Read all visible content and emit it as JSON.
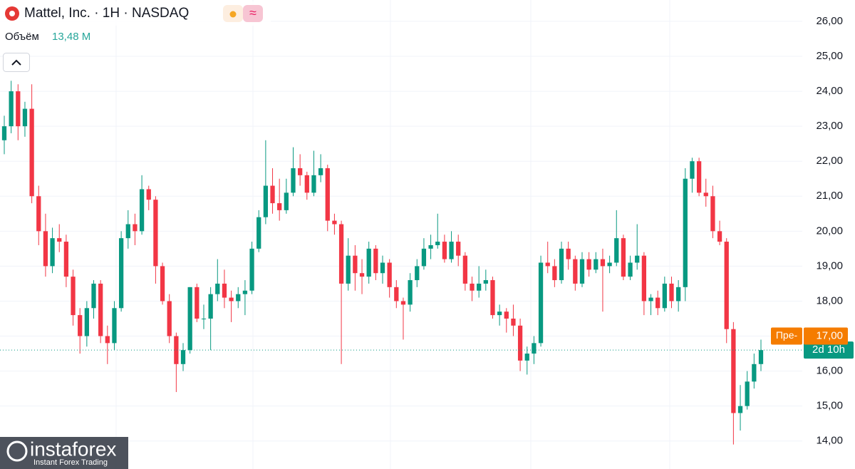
{
  "header": {
    "title": "Mattel, Inc. · 1H · NASDAQ",
    "volume_label": "Объём",
    "volume_value": "13,48 M"
  },
  "chart_data": {
    "type": "candlestick",
    "up_color": "#089981",
    "down_color": "#f23645",
    "ylim": [
      13.2,
      26.61
    ],
    "yticks": [
      {
        "value": 14,
        "label": "14,00"
      },
      {
        "value": 15,
        "label": "15,00"
      },
      {
        "value": 16,
        "label": "16,00"
      },
      {
        "value": 17,
        "label": "17,00"
      },
      {
        "value": 18,
        "label": "18,00"
      },
      {
        "value": 19,
        "label": "19,00"
      },
      {
        "value": 20,
        "label": "20,00"
      },
      {
        "value": 21,
        "label": "21,00"
      },
      {
        "value": 22,
        "label": "22,00"
      },
      {
        "value": 23,
        "label": "23,00"
      },
      {
        "value": 24,
        "label": "24,00"
      },
      {
        "value": 25,
        "label": "25,00"
      },
      {
        "value": 26,
        "label": "26,00"
      }
    ],
    "grid": true,
    "ohlc": [
      [
        22.6,
        23.3,
        22.2,
        23.0
      ],
      [
        23.0,
        24.3,
        22.8,
        24.0
      ],
      [
        24.0,
        24.2,
        22.6,
        23.0
      ],
      [
        23.0,
        23.7,
        22.7,
        23.5
      ],
      [
        23.5,
        24.2,
        20.8,
        21.0
      ],
      [
        21.0,
        21.3,
        19.6,
        20.0
      ],
      [
        20.0,
        20.5,
        18.7,
        19.0
      ],
      [
        19.0,
        20.1,
        18.8,
        19.8
      ],
      [
        19.8,
        20.2,
        19.4,
        19.7
      ],
      [
        19.7,
        19.9,
        18.4,
        18.7
      ],
      [
        18.7,
        18.9,
        17.3,
        17.6
      ],
      [
        17.6,
        17.8,
        16.5,
        17.0
      ],
      [
        17.0,
        18.0,
        16.7,
        17.8
      ],
      [
        17.8,
        18.6,
        17.5,
        18.5
      ],
      [
        18.5,
        18.6,
        16.8,
        17.0
      ],
      [
        17.0,
        17.3,
        16.2,
        16.8
      ],
      [
        16.8,
        18.0,
        16.6,
        17.8
      ],
      [
        17.8,
        20.0,
        17.7,
        19.8
      ],
      [
        19.8,
        20.6,
        19.5,
        20.2
      ],
      [
        20.2,
        20.5,
        19.6,
        20.0
      ],
      [
        20.0,
        21.6,
        19.9,
        21.2
      ],
      [
        21.2,
        21.3,
        20.6,
        20.9
      ],
      [
        20.9,
        21.0,
        18.5,
        19.0
      ],
      [
        19.0,
        19.1,
        17.9,
        18.0
      ],
      [
        18.0,
        18.2,
        16.8,
        17.0
      ],
      [
        17.0,
        17.1,
        15.4,
        16.2
      ],
      [
        16.2,
        16.8,
        16.0,
        16.6
      ],
      [
        16.6,
        18.4,
        16.5,
        18.4
      ],
      [
        18.4,
        18.5,
        17.4,
        17.5
      ],
      [
        17.5,
        17.9,
        17.2,
        17.5
      ],
      [
        17.5,
        18.4,
        16.6,
        18.2
      ],
      [
        18.2,
        19.2,
        18.0,
        18.5
      ],
      [
        18.5,
        18.9,
        17.8,
        18.1
      ],
      [
        18.1,
        18.3,
        17.4,
        18.0
      ],
      [
        18.0,
        18.4,
        17.8,
        18.2
      ],
      [
        18.2,
        18.6,
        17.6,
        18.3
      ],
      [
        18.3,
        19.7,
        18.2,
        19.5
      ],
      [
        19.5,
        20.6,
        19.4,
        20.4
      ],
      [
        20.4,
        22.6,
        20.2,
        21.3
      ],
      [
        21.3,
        21.8,
        20.5,
        20.8
      ],
      [
        20.8,
        21.5,
        20.3,
        20.6
      ],
      [
        20.6,
        21.5,
        20.5,
        21.1
      ],
      [
        21.1,
        22.4,
        21.0,
        21.8
      ],
      [
        21.8,
        22.2,
        21.3,
        21.6
      ],
      [
        21.6,
        21.7,
        20.9,
        21.1
      ],
      [
        21.1,
        22.3,
        21.0,
        21.6
      ],
      [
        21.6,
        22.2,
        21.4,
        21.8
      ],
      [
        21.8,
        21.9,
        20.0,
        20.3
      ],
      [
        20.3,
        20.5,
        19.9,
        20.2
      ],
      [
        20.2,
        20.3,
        16.2,
        18.5
      ],
      [
        18.5,
        19.8,
        18.3,
        19.3
      ],
      [
        19.3,
        19.6,
        18.3,
        18.8
      ],
      [
        18.8,
        19.2,
        18.2,
        18.7
      ],
      [
        18.7,
        19.7,
        18.5,
        19.5
      ],
      [
        19.5,
        19.6,
        18.6,
        18.8
      ],
      [
        18.8,
        19.3,
        18.5,
        19.1
      ],
      [
        19.1,
        19.2,
        18.1,
        18.4
      ],
      [
        18.4,
        18.6,
        17.8,
        18.0
      ],
      [
        18.0,
        18.1,
        16.9,
        17.9
      ],
      [
        17.9,
        18.8,
        17.7,
        18.6
      ],
      [
        18.6,
        19.2,
        18.4,
        19.0
      ],
      [
        19.0,
        19.8,
        18.9,
        19.5
      ],
      [
        19.5,
        19.9,
        19.2,
        19.6
      ],
      [
        19.6,
        20.5,
        19.5,
        19.7
      ],
      [
        19.7,
        19.9,
        19.1,
        19.2
      ],
      [
        19.2,
        20.0,
        19.1,
        19.7
      ],
      [
        19.7,
        19.9,
        19.0,
        19.3
      ],
      [
        19.3,
        19.4,
        18.3,
        18.5
      ],
      [
        18.5,
        18.7,
        18.0,
        18.3
      ],
      [
        18.3,
        19.0,
        18.1,
        18.5
      ],
      [
        18.5,
        18.9,
        18.3,
        18.6
      ],
      [
        18.6,
        18.7,
        17.5,
        17.6
      ],
      [
        17.6,
        17.9,
        17.3,
        17.7
      ],
      [
        17.7,
        17.8,
        17.1,
        17.5
      ],
      [
        17.5,
        17.9,
        17.0,
        17.3
      ],
      [
        17.3,
        17.5,
        16.0,
        16.3
      ],
      [
        16.3,
        16.7,
        15.9,
        16.5
      ],
      [
        16.5,
        17.0,
        16.2,
        16.8
      ],
      [
        16.8,
        19.3,
        16.7,
        19.1
      ],
      [
        19.1,
        19.7,
        18.8,
        19.0
      ],
      [
        19.0,
        19.2,
        18.4,
        18.6
      ],
      [
        18.6,
        19.7,
        18.5,
        19.5
      ],
      [
        19.5,
        19.7,
        18.9,
        19.2
      ],
      [
        19.2,
        19.3,
        18.3,
        18.5
      ],
      [
        18.5,
        19.4,
        18.4,
        19.2
      ],
      [
        19.2,
        19.4,
        18.7,
        18.9
      ],
      [
        18.9,
        19.4,
        18.8,
        19.2
      ],
      [
        19.2,
        19.5,
        17.7,
        19.0
      ],
      [
        19.0,
        19.3,
        18.8,
        19.1
      ],
      [
        19.1,
        20.6,
        19.0,
        19.8
      ],
      [
        19.8,
        19.9,
        18.6,
        18.7
      ],
      [
        18.7,
        19.3,
        18.6,
        19.1
      ],
      [
        19.1,
        20.2,
        18.9,
        19.3
      ],
      [
        19.3,
        19.4,
        17.6,
        18.0
      ],
      [
        18.0,
        18.2,
        17.6,
        18.1
      ],
      [
        18.1,
        18.3,
        17.6,
        17.8
      ],
      [
        17.8,
        18.7,
        17.7,
        18.5
      ],
      [
        18.5,
        18.7,
        17.8,
        18.0
      ],
      [
        18.0,
        18.6,
        17.7,
        18.4
      ],
      [
        18.4,
        21.8,
        18.0,
        21.5
      ],
      [
        21.5,
        22.1,
        21.1,
        22.0
      ],
      [
        22.0,
        22.1,
        21.0,
        21.1
      ],
      [
        21.1,
        21.5,
        20.7,
        21.0
      ],
      [
        21.0,
        21.3,
        19.8,
        20.0
      ],
      [
        20.0,
        20.3,
        19.6,
        19.7
      ],
      [
        19.7,
        19.8,
        16.8,
        17.2
      ],
      [
        17.2,
        17.4,
        13.9,
        14.8
      ],
      [
        14.8,
        15.6,
        14.3,
        15.0
      ],
      [
        15.0,
        16.0,
        14.9,
        15.7
      ],
      [
        15.7,
        16.5,
        15.5,
        16.2
      ],
      [
        16.2,
        16.9,
        16.0,
        16.6
      ]
    ],
    "pre_market": {
      "label": "Пре-",
      "price": {
        "value": 17,
        "label": "17,00"
      },
      "color": "#f57c00"
    },
    "countdown": "2d 10h"
  },
  "watermark": {
    "brand": "instaforex",
    "tagline": "Instant Forex Trading"
  }
}
